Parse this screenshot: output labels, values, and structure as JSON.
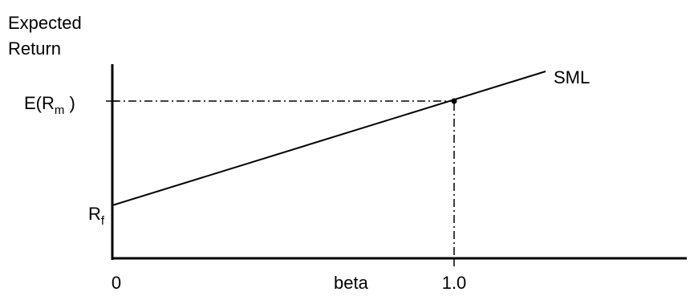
{
  "diagram": {
    "y_axis_label": {
      "line1": "Expected",
      "line2": "Return"
    },
    "x_axis_label": "beta",
    "line_label": "SML",
    "x_ticks": {
      "origin": "0",
      "market_beta": "1.0"
    },
    "y_ticks": {
      "market_return": {
        "prefix": "E(R",
        "subscript": "m",
        "suffix": " )"
      },
      "risk_free": {
        "base": "R",
        "subscript": "f"
      }
    }
  }
}
